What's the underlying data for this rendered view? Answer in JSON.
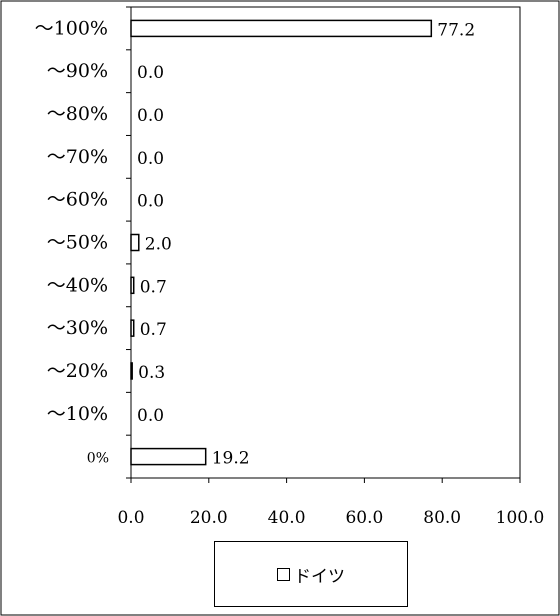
{
  "chart_data": {
    "type": "bar",
    "orientation": "horizontal",
    "categories": [
      "～100%",
      "～90%",
      "～80%",
      "～70%",
      "～60%",
      "～50%",
      "～40%",
      "～30%",
      "～20%",
      "～10%",
      "0%"
    ],
    "series": [
      {
        "name": "ドイツ",
        "values": [
          77.2,
          0.0,
          0.0,
          0.0,
          0.0,
          2.0,
          0.7,
          0.7,
          0.3,
          0.0,
          19.2
        ],
        "color": "#ffffff"
      }
    ],
    "data_labels": [
      "77.2",
      "0.0",
      "0.0",
      "0.0",
      "0.0",
      "2.0",
      "0.7",
      "0.7",
      "0.3",
      "0.0",
      "19.2"
    ],
    "x_ticks": [
      "0.0",
      "20.0",
      "40.0",
      "60.0",
      "80.0",
      "100.0"
    ],
    "xlim": [
      0,
      100
    ],
    "grid": false,
    "legend_position": "bottom"
  },
  "legend": {
    "label": "ドイツ"
  }
}
